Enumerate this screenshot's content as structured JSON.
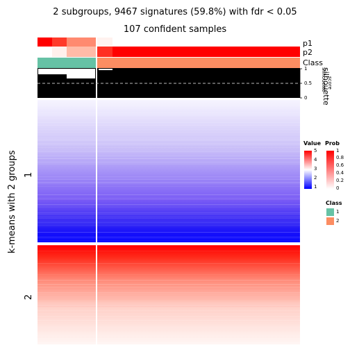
{
  "title_line1": "2 subgroups, 9467 signatures (59.8%) with fdr < 0.05",
  "title_line2": "107 confident samples",
  "y_axis_title": "k-means with 2 groups",
  "row_groups": [
    "1",
    "2"
  ],
  "annotation_labels": {
    "p1": "p1",
    "p2": "p2",
    "class": "Class",
    "silhouette": "silhouette"
  },
  "silhouette_axis": {
    "ticks": [
      "1",
      "0.5",
      "0"
    ],
    "label_line1": "Silhouette",
    "label_line2": "score"
  },
  "legends": {
    "value": {
      "title": "Value",
      "ticks": [
        "5",
        "4",
        "3",
        "2",
        "1"
      ],
      "colors": [
        "#ff0000",
        "#ffffff",
        "#0000ff"
      ]
    },
    "prob": {
      "title": "Prob",
      "ticks": [
        "1",
        "0.8",
        "0.6",
        "0.4",
        "0.2",
        "0"
      ],
      "colors": [
        "#ff0000",
        "#ffffff"
      ]
    },
    "class": {
      "title": "Class",
      "items": [
        {
          "label": "1",
          "color": "#66c2a5"
        },
        {
          "label": "2",
          "color": "#fc8d62"
        }
      ]
    }
  },
  "chart_data": {
    "type": "heatmap",
    "columns": {
      "class_1_count": 6,
      "class_2_count": 101
    },
    "rows": {
      "group_1_fraction": 0.52,
      "group_2_fraction": 0.48
    },
    "value_range": [
      1,
      5
    ],
    "silhouette_threshold": 0.5
  }
}
